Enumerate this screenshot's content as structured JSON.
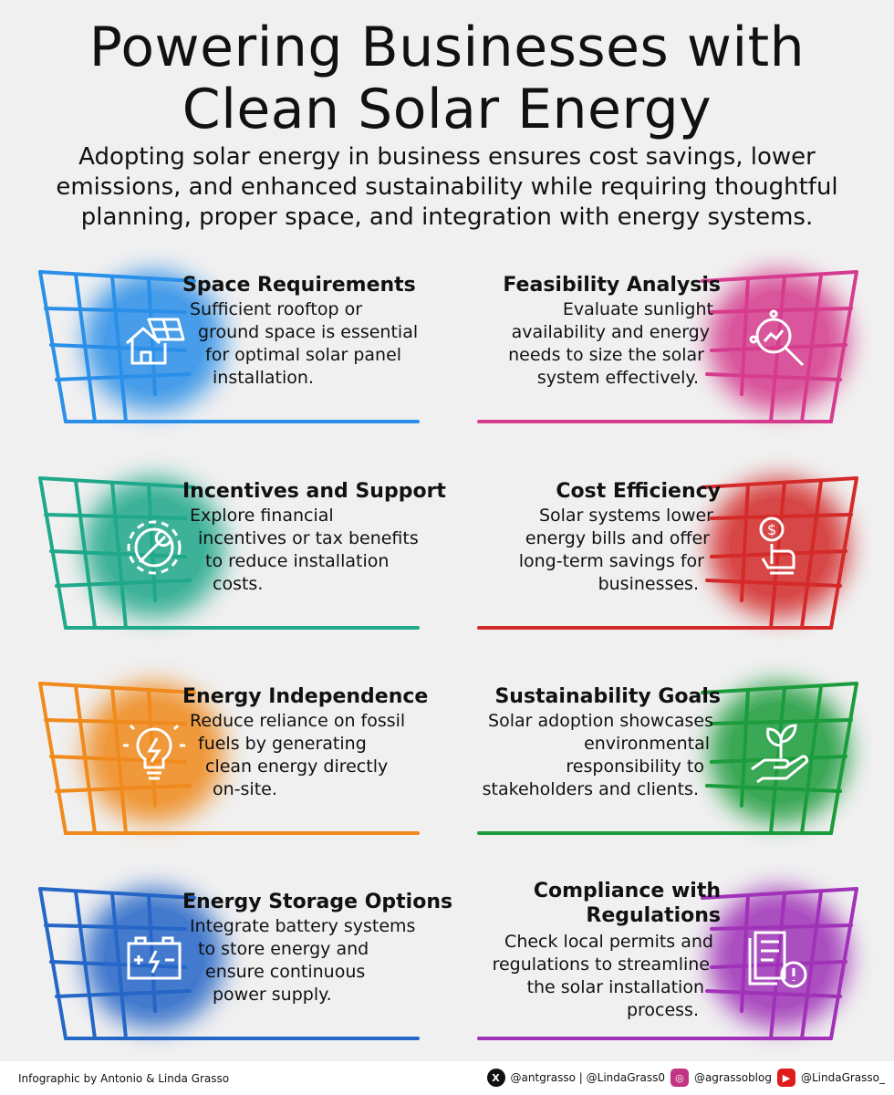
{
  "header": {
    "title_line1": "Powering Businesses with",
    "title_line2": "Clean Solar Energy",
    "subtitle_line1": "Adopting solar energy in business ensures cost savings, lower",
    "subtitle_line2": "emissions, and enhanced sustainability while requiring thoughtful",
    "subtitle_line3": "planning, proper space, and integration with energy systems."
  },
  "cards": [
    {
      "title": "Space Requirements",
      "lines": [
        "Sufficient rooftop or",
        "ground space is essential",
        "for optimal solar panel",
        "installation."
      ],
      "color": "#2a8fe8",
      "icon": "house-solar-panel-icon"
    },
    {
      "title": "Feasibility Analysis",
      "lines": [
        "Evaluate sunlight",
        "availability and energy",
        "needs to size the solar",
        "system effectively."
      ],
      "color": "#d63c8e",
      "icon": "magnifier-analysis-icon"
    },
    {
      "title": "Incentives and Support",
      "lines": [
        "Explore financial",
        "incentives or tax benefits",
        "to reduce installation",
        "costs."
      ],
      "color": "#1fa88a",
      "icon": "gear-wrench-icon"
    },
    {
      "title": "Cost Efficiency",
      "lines": [
        "Solar systems lower",
        "energy bills and offer",
        "long-term savings for",
        "businesses."
      ],
      "color": "#d42a2a",
      "icon": "hand-dollar-icon"
    },
    {
      "title": "Energy Independence",
      "lines": [
        "Reduce reliance on fossil",
        "fuels by generating",
        "clean energy directly",
        "on-site."
      ],
      "color": "#f08a1c",
      "icon": "lightbulb-bolt-icon"
    },
    {
      "title": "Sustainability Goals",
      "lines": [
        "Solar adoption showcases",
        "environmental",
        "responsibility to",
        "stakeholders and clients."
      ],
      "color": "#1c9c3c",
      "icon": "hand-plant-icon"
    },
    {
      "title": "Energy Storage Options",
      "lines": [
        "Integrate battery systems",
        "to store energy and",
        "ensure continuous",
        "power supply."
      ],
      "color": "#2566c7",
      "icon": "battery-icon"
    },
    {
      "title_line1": "Compliance with",
      "title_line2": "Regulations",
      "lines": [
        "Check local permits and",
        "regulations to streamline",
        "the solar installation",
        "process."
      ],
      "color": "#a032b8",
      "icon": "document-alert-icon"
    }
  ],
  "footer": {
    "credit": "Infographic by Antonio & Linda Grasso",
    "x_handles": "@antgrasso | @LindaGrass0",
    "instagram": "@agrassoblog",
    "youtube": "@LindaGrasso_"
  }
}
